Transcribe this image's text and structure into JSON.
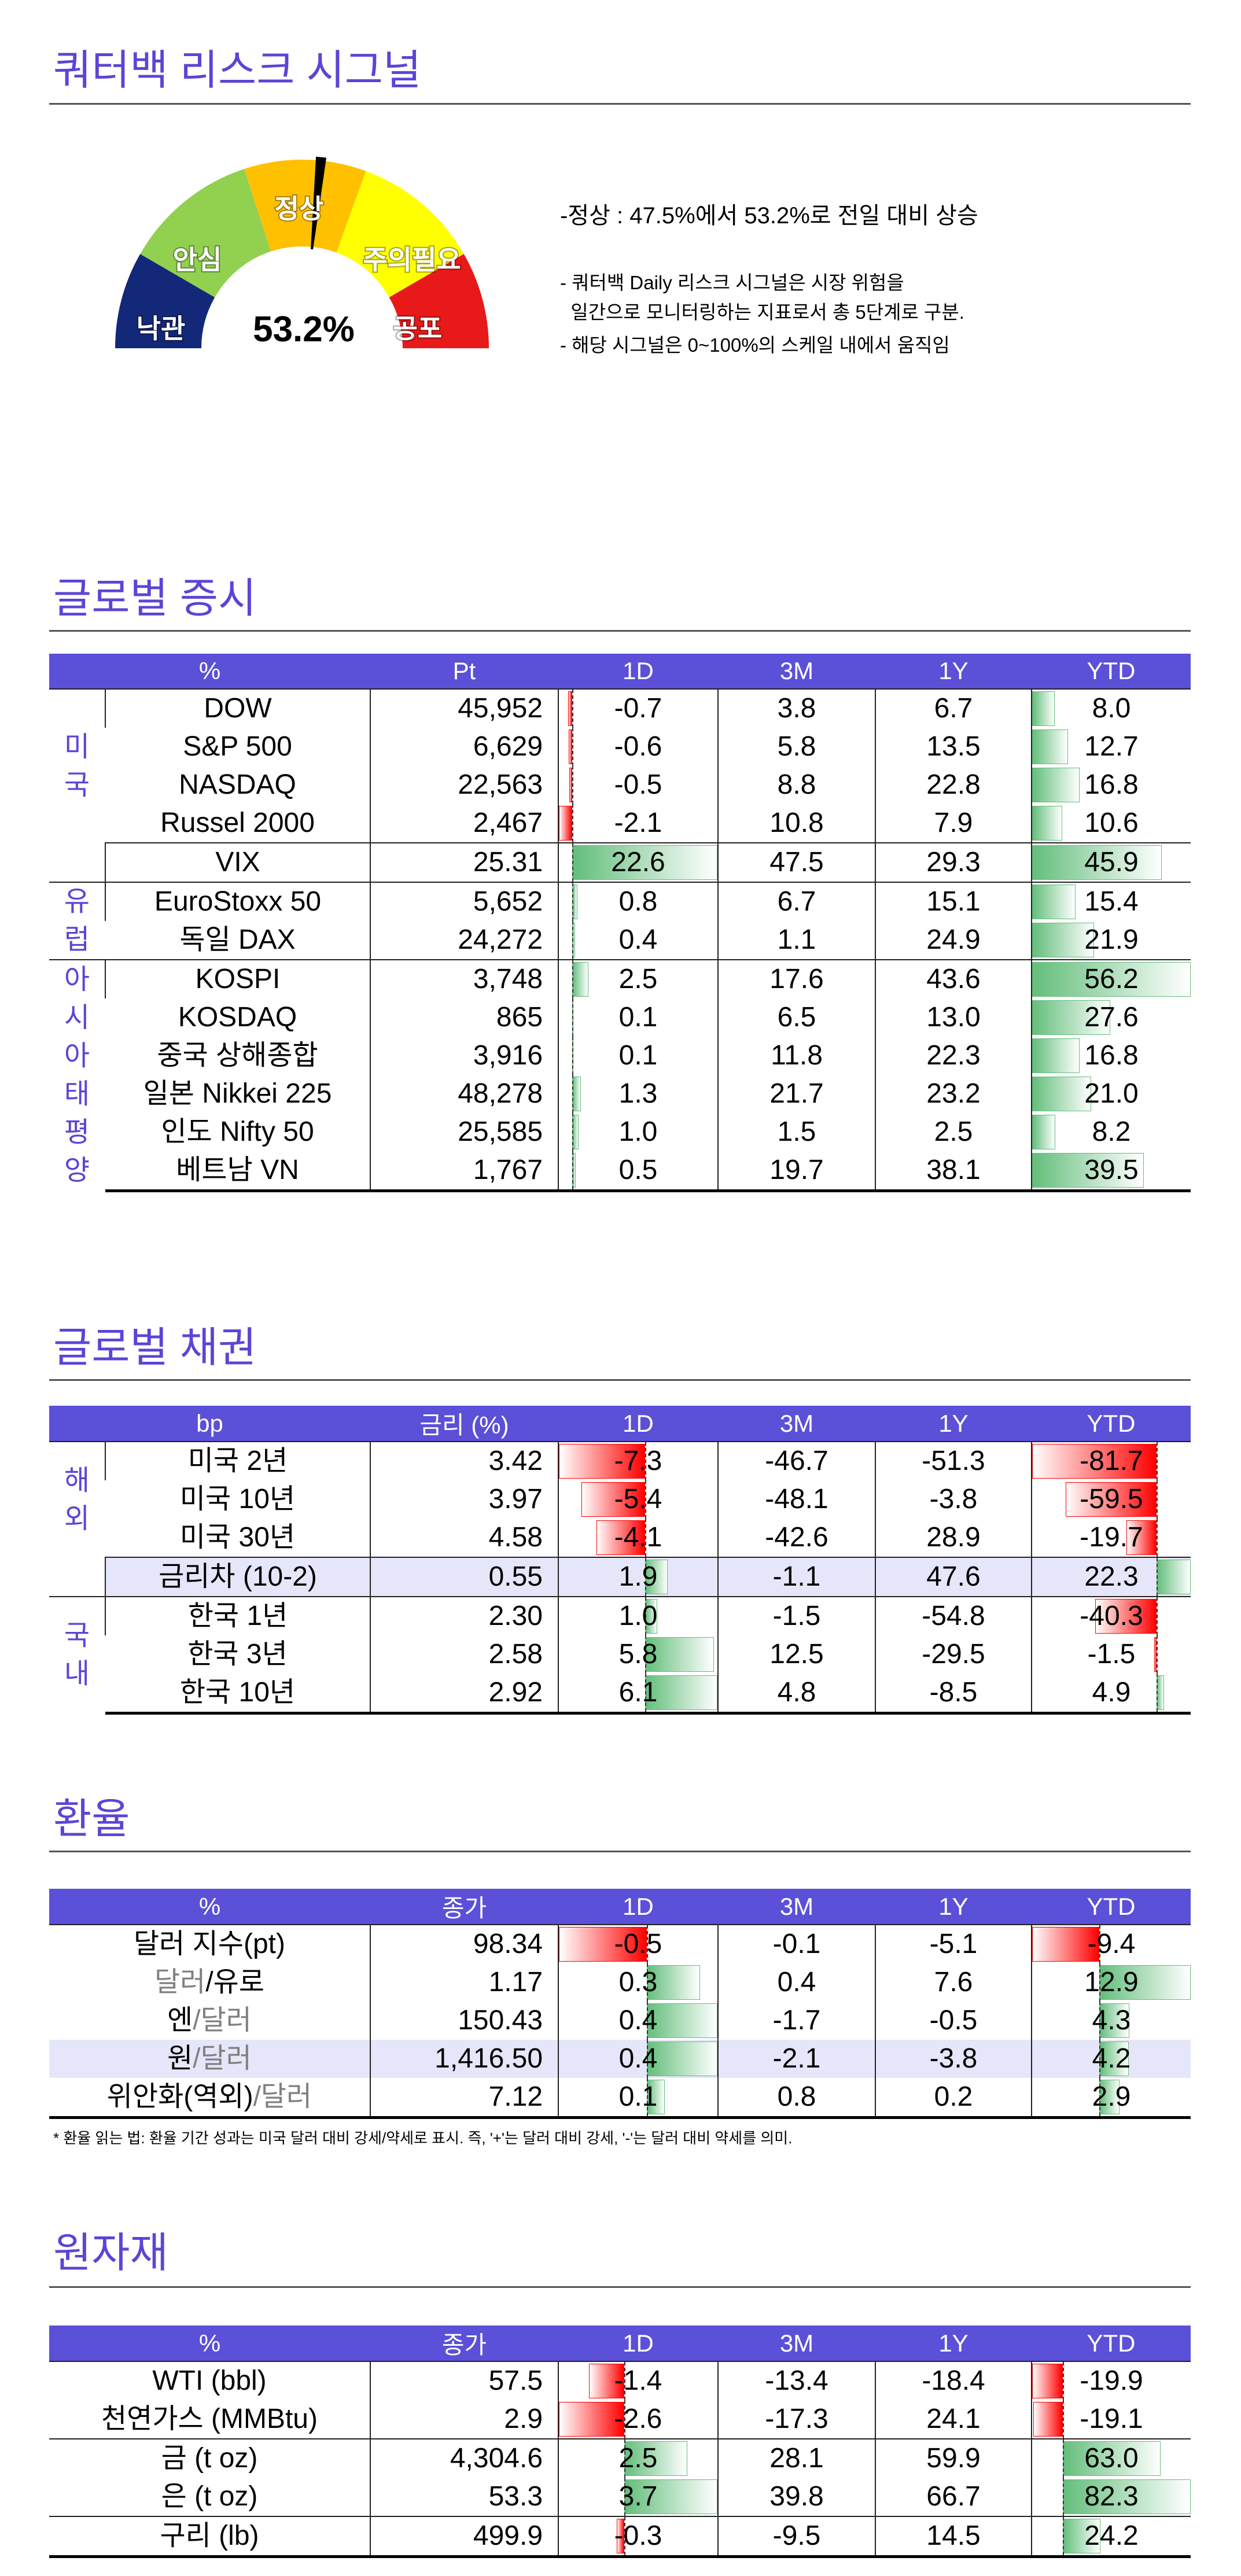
{
  "title": "쿼터백 리스크 시그널",
  "gauge": {
    "value_label": "53.2%",
    "value_pct": 53.2,
    "segments": [
      {
        "label": "낙관",
        "color": "#14287a"
      },
      {
        "label": "안심",
        "color": "#92d050"
      },
      {
        "label": "정상",
        "color": "#ffc000"
      },
      {
        "label": "주의필요",
        "color": "#ffff00"
      },
      {
        "label": "공포",
        "color": "#e81919"
      }
    ]
  },
  "notes": {
    "main": "-정상 : 47.5%에서 53.2%로 전일 대비 상승",
    "lines": [
      "- 쿼터백 Daily 리스크 시그널은 시장 위험을",
      "  일간으로 모니터링하는 지표로서 총 5단계로 구분.",
      "- 해당 시그널은 0~100%의 스케일 내에서 움직임"
    ]
  },
  "tables": {
    "equities": {
      "title": "글로벌 증시",
      "group_col": true,
      "headers": [
        "%",
        "Pt",
        "1D",
        "3M",
        "1Y",
        "YTD"
      ],
      "groups": [
        {
          "label": "미국",
          "rows": [
            {
              "name": [
                {
                  "t": "DOW"
                }
              ],
              "value": "45,952",
              "d1": "-0.7",
              "m3": "3.8",
              "y1": "6.7",
              "ytd": "8.0"
            },
            {
              "name": [
                {
                  "t": "S&P 500"
                }
              ],
              "value": "6,629",
              "d1": "-0.6",
              "m3": "5.8",
              "y1": "13.5",
              "ytd": "12.7"
            },
            {
              "name": [
                {
                  "t": "NASDAQ"
                }
              ],
              "value": "22,563",
              "d1": "-0.5",
              "m3": "8.8",
              "y1": "22.8",
              "ytd": "16.8"
            },
            {
              "name": [
                {
                  "t": "Russel 2000"
                }
              ],
              "value": "2,467",
              "d1": "-2.1",
              "m3": "10.8",
              "y1": "7.9",
              "ytd": "10.6"
            }
          ]
        },
        {
          "label": "",
          "continue": true,
          "rows": [
            {
              "name": [
                {
                  "t": "VIX"
                }
              ],
              "value": "25.31",
              "d1": "22.6",
              "m3": "47.5",
              "y1": "29.3",
              "ytd": "45.9"
            }
          ]
        },
        {
          "label": "유럽",
          "rows": [
            {
              "name": [
                {
                  "t": "EuroStoxx 50"
                }
              ],
              "value": "5,652",
              "d1": "0.8",
              "m3": "6.7",
              "y1": "15.1",
              "ytd": "15.4"
            },
            {
              "name": [
                {
                  "t": "독일 DAX"
                }
              ],
              "value": "24,272",
              "d1": "0.4",
              "m3": "1.1",
              "y1": "24.9",
              "ytd": "21.9"
            }
          ]
        },
        {
          "label": "아시아태평양",
          "rows": [
            {
              "name": [
                {
                  "t": "KOSPI"
                }
              ],
              "value": "3,748",
              "d1": "2.5",
              "m3": "17.6",
              "y1": "43.6",
              "ytd": "56.2"
            },
            {
              "name": [
                {
                  "t": "KOSDAQ"
                }
              ],
              "value": "865",
              "d1": "0.1",
              "m3": "6.5",
              "y1": "13.0",
              "ytd": "27.6"
            },
            {
              "name": [
                {
                  "t": "중국 상해종합"
                }
              ],
              "value": "3,916",
              "d1": "0.1",
              "m3": "11.8",
              "y1": "22.3",
              "ytd": "16.8"
            },
            {
              "name": [
                {
                  "t": "일본 Nikkei 225"
                }
              ],
              "value": "48,278",
              "d1": "1.3",
              "m3": "21.7",
              "y1": "23.2",
              "ytd": "21.0"
            },
            {
              "name": [
                {
                  "t": "인도 Nifty 50"
                }
              ],
              "value": "25,585",
              "d1": "1.0",
              "m3": "1.5",
              "y1": "2.5",
              "ytd": "8.2"
            },
            {
              "name": [
                {
                  "t": "베트남 VN"
                }
              ],
              "value": "1,767",
              "d1": "0.5",
              "m3": "19.7",
              "y1": "38.1",
              "ytd": "39.5"
            }
          ]
        }
      ]
    },
    "bonds": {
      "title": "글로벌 채권",
      "group_col": true,
      "headers": [
        "bp",
        "금리 (%)",
        "1D",
        "3M",
        "1Y",
        "YTD"
      ],
      "groups": [
        {
          "label": "해외",
          "rows": [
            {
              "name": [
                {
                  "t": "미국 2년"
                }
              ],
              "value": "3.42",
              "d1": "-7.3",
              "m3": "-46.7",
              "y1": "-51.3",
              "ytd": "-81.7"
            },
            {
              "name": [
                {
                  "t": "미국 10년"
                }
              ],
              "value": "3.97",
              "d1": "-5.4",
              "m3": "-48.1",
              "y1": "-3.8",
              "ytd": "-59.5"
            },
            {
              "name": [
                {
                  "t": "미국 30년"
                }
              ],
              "value": "4.58",
              "d1": "-4.1",
              "m3": "-42.6",
              "y1": "28.9",
              "ytd": "-19.7"
            }
          ]
        },
        {
          "label": "",
          "continue": true,
          "rows": [
            {
              "name": [
                {
                  "t": "금리차 (10-2)"
                }
              ],
              "value": "0.55",
              "d1": "1.9",
              "m3": "-1.1",
              "y1": "47.6",
              "ytd": "22.3",
              "highlight": true
            }
          ]
        },
        {
          "label": "국내",
          "rows": [
            {
              "name": [
                {
                  "t": "한국 1년"
                }
              ],
              "value": "2.30",
              "d1": "1.0",
              "m3": "-1.5",
              "y1": "-54.8",
              "ytd": "-40.3"
            },
            {
              "name": [
                {
                  "t": "한국 3년"
                }
              ],
              "value": "2.58",
              "d1": "5.8",
              "m3": "12.5",
              "y1": "-29.5",
              "ytd": "-1.5"
            },
            {
              "name": [
                {
                  "t": "한국 10년"
                }
              ],
              "value": "2.92",
              "d1": "6.1",
              "m3": "4.8",
              "y1": "-8.5",
              "ytd": "4.9"
            }
          ]
        }
      ]
    },
    "fx": {
      "title": "환율",
      "group_col": false,
      "headers": [
        "%",
        "종가",
        "1D",
        "3M",
        "1Y",
        "YTD"
      ],
      "groups": [
        {
          "label": "",
          "rows": [
            {
              "name": [
                {
                  "t": "달러 지수(pt)"
                }
              ],
              "value": "98.34",
              "d1": "-0.5",
              "m3": "-0.1",
              "y1": "-5.1",
              "ytd": "-9.4"
            },
            {
              "name": [
                {
                  "t": "달러",
                  "muted": true
                },
                {
                  "t": "/유로"
                }
              ],
              "value": "1.17",
              "d1": "0.3",
              "m3": "0.4",
              "y1": "7.6",
              "ytd": "12.9"
            },
            {
              "name": [
                {
                  "t": "엔"
                },
                {
                  "t": "/달러",
                  "muted": true
                }
              ],
              "value": "150.43",
              "d1": "0.4",
              "m3": "-1.7",
              "y1": "-0.5",
              "ytd": "4.3"
            },
            {
              "name": [
                {
                  "t": "원"
                },
                {
                  "t": "/달러",
                  "muted": true
                }
              ],
              "value": "1,416.50",
              "d1": "0.4",
              "m3": "-2.1",
              "y1": "-3.8",
              "ytd": "4.2",
              "highlight": true
            },
            {
              "name": [
                {
                  "t": "위안화(역외)"
                },
                {
                  "t": "/달러",
                  "muted": true
                }
              ],
              "value": "7.12",
              "d1": "0.1",
              "m3": "0.8",
              "y1": "0.2",
              "ytd": "2.9"
            }
          ]
        }
      ],
      "footnote": "* 환율 읽는 법: 환율 기간 성과는 미국 달러 대비 강세/약세로 표시. 즉, '+'는 달러 대비 강세, '-'는 달러 대비 약세를 의미."
    },
    "commodities": {
      "title": "원자재",
      "group_col": false,
      "headers": [
        "%",
        "종가",
        "1D",
        "3M",
        "1Y",
        "YTD"
      ],
      "groups": [
        {
          "label": "",
          "rows": [
            {
              "name": [
                {
                  "t": "WTI (bbl)"
                }
              ],
              "value": "57.5",
              "d1": "-1.4",
              "m3": "-13.4",
              "y1": "-18.4",
              "ytd": "-19.9"
            },
            {
              "name": [
                {
                  "t": "천연가스 (MMBtu)"
                }
              ],
              "value": "2.9",
              "d1": "-2.6",
              "m3": "-17.3",
              "y1": "24.1",
              "ytd": "-19.1"
            }
          ]
        },
        {
          "label": "",
          "rows": [
            {
              "name": [
                {
                  "t": "금 (t oz)"
                }
              ],
              "value": "4,304.6",
              "d1": "2.5",
              "m3": "28.1",
              "y1": "59.9",
              "ytd": "63.0"
            },
            {
              "name": [
                {
                  "t": "은 (t oz)"
                }
              ],
              "value": "53.3",
              "d1": "3.7",
              "m3": "39.8",
              "y1": "66.7",
              "ytd": "82.3"
            }
          ]
        },
        {
          "label": "",
          "rows": [
            {
              "name": [
                {
                  "t": "구리 (lb)"
                }
              ],
              "value": "499.9",
              "d1": "-0.3",
              "m3": "-9.5",
              "y1": "14.5",
              "ytd": "24.2"
            }
          ]
        }
      ]
    }
  }
}
